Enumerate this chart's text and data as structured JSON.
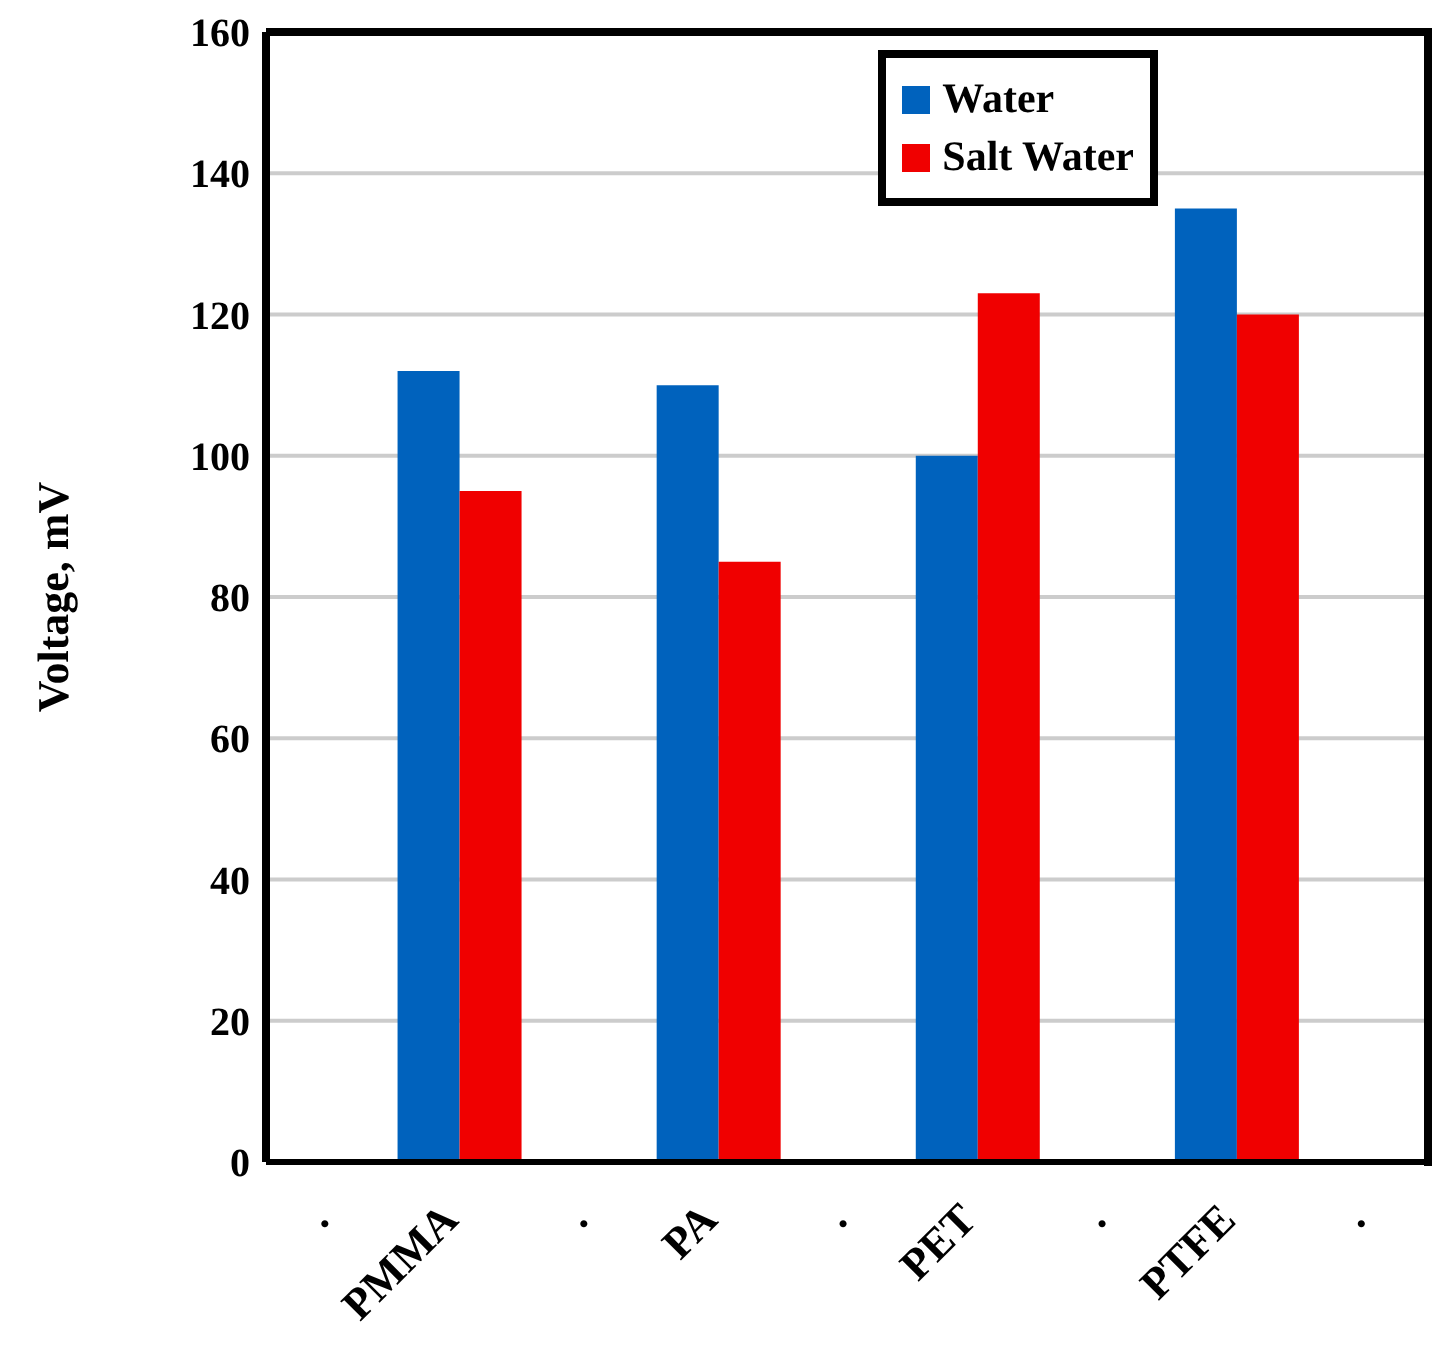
{
  "chart_data": {
    "type": "bar",
    "ylabel": "Voltage, mV",
    "categories": [
      ".",
      "PMMA",
      ".",
      "PA",
      ".",
      "PET",
      ".",
      "PTFE",
      "."
    ],
    "series": [
      {
        "name": "Water",
        "color": "#0062bd",
        "values": [
          null,
          112,
          null,
          110,
          null,
          100,
          null,
          135,
          null
        ]
      },
      {
        "name": "Salt Water",
        "color": "#f00000",
        "values": [
          null,
          95,
          null,
          85,
          null,
          123,
          null,
          120,
          null
        ]
      }
    ],
    "ylim": [
      0,
      160
    ],
    "yticks": [
      0,
      20,
      40,
      60,
      80,
      100,
      120,
      140,
      160
    ],
    "grid": "y",
    "legend": "top right"
  }
}
